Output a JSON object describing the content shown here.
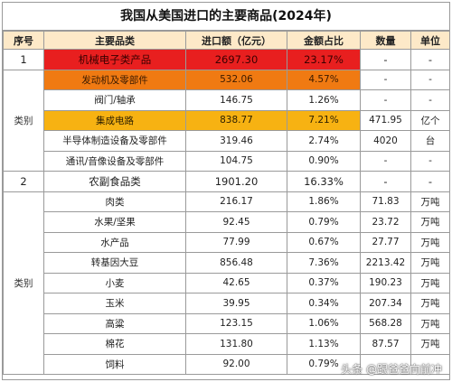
{
  "title": "我国从美国进口的主要商品(2024年)",
  "headers": [
    "序号",
    "主要品类",
    "进口额（亿元）",
    "金额占比",
    "数量",
    "单位"
  ],
  "rows": [
    {
      "kind": "summary",
      "seq": "1",
      "name": "机械电子类产品",
      "value": "2697.30",
      "share": "23.17%",
      "qty": "-",
      "unit": "-",
      "hl": "red"
    },
    {
      "kind": "item",
      "seq": "",
      "name": "发动机及零部件",
      "value": "532.06",
      "share": "4.57%",
      "qty": "-",
      "unit": "-",
      "hl": "orange"
    },
    {
      "kind": "item",
      "seq": "",
      "name": "阀门/轴承",
      "value": "146.75",
      "share": "1.26%",
      "qty": "-",
      "unit": "-",
      "hl": ""
    },
    {
      "kind": "item",
      "seq": "",
      "name": "集成电路",
      "value": "838.77",
      "share": "7.21%",
      "qty": "471.95",
      "unit": "亿个",
      "hl": "yellow"
    },
    {
      "kind": "item",
      "seq": "",
      "name": "半导体制造设备及零部件",
      "value": "319.46",
      "share": "2.74%",
      "qty": "4020",
      "unit": "台",
      "hl": ""
    },
    {
      "kind": "item",
      "seq": "",
      "name": "通讯/音像设备及零部件",
      "value": "104.75",
      "share": "0.90%",
      "qty": "-",
      "unit": "-",
      "hl": ""
    },
    {
      "kind": "summary",
      "seq": "2",
      "name": "农副食品类",
      "value": "1901.20",
      "share": "16.33%",
      "qty": "-",
      "unit": "-",
      "hl": ""
    },
    {
      "kind": "item",
      "seq": "",
      "name": "肉类",
      "value": "216.17",
      "share": "1.86%",
      "qty": "71.83",
      "unit": "万吨",
      "hl": ""
    },
    {
      "kind": "item",
      "seq": "",
      "name": "水果/坚果",
      "value": "92.45",
      "share": "0.79%",
      "qty": "23.72",
      "unit": "万吨",
      "hl": ""
    },
    {
      "kind": "item",
      "seq": "",
      "name": "水产品",
      "value": "77.99",
      "share": "0.67%",
      "qty": "27.77",
      "unit": "万吨",
      "hl": ""
    },
    {
      "kind": "item",
      "seq": "",
      "name": "转基因大豆",
      "value": "856.48",
      "share": "7.36%",
      "qty": "2213.42",
      "unit": "万吨",
      "hl": ""
    },
    {
      "kind": "item",
      "seq": "",
      "name": "小麦",
      "value": "42.65",
      "share": "0.37%",
      "qty": "190.23",
      "unit": "万吨",
      "hl": ""
    },
    {
      "kind": "item",
      "seq": "",
      "name": "玉米",
      "value": "39.95",
      "share": "0.34%",
      "qty": "207.34",
      "unit": "万吨",
      "hl": ""
    },
    {
      "kind": "item",
      "seq": "",
      "name": "高粱",
      "value": "123.15",
      "share": "1.06%",
      "qty": "568.28",
      "unit": "万吨",
      "hl": ""
    },
    {
      "kind": "item",
      "seq": "",
      "name": "棉花",
      "value": "131.80",
      "share": "1.13%",
      "qty": "87.57",
      "unit": "万吨",
      "hl": ""
    },
    {
      "kind": "item",
      "seq": "",
      "name": "饲料",
      "value": "92.00",
      "share": "0.79%",
      "qty": "",
      "unit": "",
      "hl": ""
    }
  ],
  "group_labels": {
    "machinery": "类别",
    "agri": "类别"
  },
  "watermark": "头条 @跟爸爸向前冲",
  "colors": {
    "header_bg": "#fde9c8",
    "highlight_red": "#e81f1f",
    "highlight_orange": "#f07a12",
    "highlight_yellow": "#f7b212"
  }
}
